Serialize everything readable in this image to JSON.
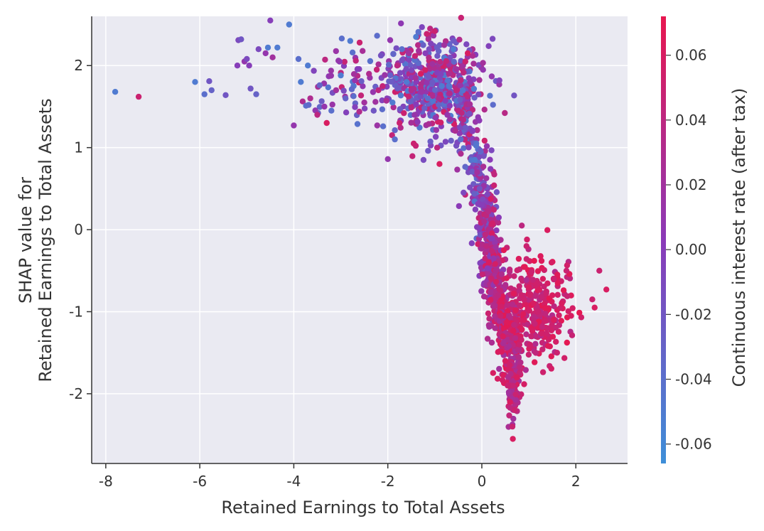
{
  "chart_data": {
    "type": "scatter",
    "title": "",
    "xlabel": "Retained Earnings to Total Assets",
    "ylabel_lines": [
      "SHAP value for",
      "Retained Earnings to Total Assets"
    ],
    "xlim": [
      -8.3,
      3.1
    ],
    "ylim": [
      -2.85,
      2.6
    ],
    "x_ticks": [
      -8,
      -6,
      -4,
      -2,
      0,
      2
    ],
    "x_tick_labels": [
      "-8",
      "-6",
      "-4",
      "-2",
      "0",
      "2"
    ],
    "y_ticks": [
      -2,
      -1,
      0,
      1,
      2
    ],
    "y_tick_labels": [
      "-2",
      "-1",
      "0",
      "1",
      "2"
    ],
    "grid": true,
    "colorbar": {
      "label": "Continuous interest rate (after tax)",
      "range": [
        -0.066,
        0.072
      ],
      "ticks": [
        -0.06,
        -0.04,
        -0.02,
        0.0,
        0.02,
        0.04,
        0.06
      ],
      "tick_labels": [
        "-0.06",
        "-0.04",
        "-0.02",
        "0.00",
        "0.02",
        "0.04",
        "0.06"
      ],
      "colors": [
        "#3e8fd8",
        "#8a3ab8",
        "#e8174f"
      ]
    },
    "points": [
      [
        -7.8,
        1.68,
        -0.05
      ],
      [
        -7.3,
        1.62,
        0.05
      ],
      [
        -6.1,
        1.8,
        -0.05
      ],
      [
        -5.9,
        1.65,
        -0.04
      ],
      [
        -5.8,
        1.81,
        -0.02
      ],
      [
        -5.75,
        1.7,
        -0.03
      ],
      [
        -5.45,
        1.64,
        -0.02
      ],
      [
        -5.2,
        2.0,
        0.0
      ],
      [
        -5.18,
        2.31,
        -0.01
      ],
      [
        -5.12,
        2.32,
        -0.02
      ],
      [
        -5.05,
        2.05,
        0.01
      ],
      [
        -5.0,
        2.08,
        -0.01
      ],
      [
        -4.95,
        2.0,
        0.0
      ],
      [
        -4.92,
        1.72,
        -0.02
      ],
      [
        -4.8,
        1.65,
        -0.03
      ],
      [
        -4.75,
        2.2,
        -0.01
      ],
      [
        -4.6,
        2.15,
        0.01
      ],
      [
        -4.55,
        2.22,
        -0.05
      ],
      [
        -4.5,
        2.55,
        0.0
      ],
      [
        -4.45,
        2.1,
        0.02
      ],
      [
        -4.35,
        2.22,
        -0.05
      ],
      [
        -4.1,
        2.5,
        -0.05
      ],
      [
        -4.0,
        1.27,
        0.01
      ],
      [
        -3.9,
        2.08,
        -0.04
      ],
      [
        -3.85,
        1.8,
        -0.05
      ],
      [
        -3.7,
        2.0,
        -0.05
      ],
      [
        -3.65,
        1.6,
        0.03
      ],
      [
        -3.5,
        1.4,
        0.04
      ],
      [
        -3.45,
        1.76,
        -0.03
      ],
      [
        -3.35,
        1.5,
        0.01
      ],
      [
        -3.3,
        1.3,
        0.06
      ],
      [
        -3.2,
        1.45,
        -0.04
      ],
      [
        -3.1,
        1.7,
        0.02
      ],
      [
        -3.05,
        2.06,
        0.01
      ],
      [
        -3.0,
        1.88,
        -0.05
      ],
      [
        -2.98,
        2.33,
        -0.04
      ],
      [
        -2.9,
        1.6,
        -0.03
      ],
      [
        -2.8,
        2.3,
        -0.05
      ],
      [
        -2.75,
        2.16,
        -0.04
      ],
      [
        -2.7,
        1.82,
        0.01
      ],
      [
        -2.6,
        2.28,
        0.05
      ],
      [
        -2.5,
        1.55,
        0.02
      ],
      [
        -2.4,
        1.9,
        0.03
      ],
      [
        -2.3,
        1.45,
        -0.02
      ],
      [
        -2.2,
        1.7,
        0.04
      ],
      [
        -2.1,
        1.26,
        -0.04
      ],
      [
        -2.0,
        0.86,
        0.01
      ],
      [
        -1.95,
        2.31,
        0.01
      ],
      [
        -1.9,
        1.55,
        -0.05
      ],
      [
        -1.85,
        1.1,
        -0.04
      ],
      [
        -1.8,
        2.0,
        0.04
      ],
      [
        -1.75,
        1.3,
        0.05
      ],
      [
        -1.7,
        2.2,
        -0.04
      ],
      [
        -1.6,
        1.8,
        -0.05
      ],
      [
        -1.55,
        2.15,
        0.02
      ],
      [
        -1.5,
        1.7,
        0.03
      ],
      [
        -1.45,
        1.05,
        0.05
      ],
      [
        -1.4,
        2.35,
        -0.05
      ],
      [
        -1.35,
        2.41,
        -0.04
      ],
      [
        -1.3,
        1.9,
        0.06
      ],
      [
        -1.2,
        2.15,
        0.0
      ],
      [
        -1.15,
        1.6,
        -0.04
      ],
      [
        -1.1,
        2.45,
        0.04
      ],
      [
        -1.05,
        2.02,
        0.02
      ],
      [
        -1.0,
        2.42,
        0.05
      ],
      [
        -0.95,
        1.0,
        0.04
      ],
      [
        -0.9,
        0.8,
        0.06
      ],
      [
        -0.85,
        1.75,
        -0.05
      ],
      [
        -0.8,
        2.25,
        0.02
      ],
      [
        -0.7,
        1.9,
        0.03
      ],
      [
        -0.6,
        2.2,
        -0.05
      ],
      [
        -0.5,
        1.45,
        0.04
      ],
      [
        -0.45,
        1.1,
        -0.04
      ],
      [
        -0.4,
        2.0,
        0.02
      ],
      [
        -0.35,
        2.05,
        0.05
      ],
      [
        -0.3,
        2.15,
        0.06
      ],
      [
        -0.25,
        1.8,
        0.01
      ],
      [
        -0.2,
        1.2,
        0.0
      ],
      [
        -0.15,
        0.85,
        -0.05
      ],
      [
        -0.1,
        0.7,
        0.02
      ],
      [
        -0.05,
        0.5,
        -0.02
      ],
      [
        0.0,
        0.3,
        0.0
      ],
      [
        0.05,
        0.1,
        0.03
      ],
      [
        0.1,
        -0.2,
        0.04
      ],
      [
        0.15,
        -0.4,
        0.06
      ],
      [
        0.2,
        -0.6,
        0.05
      ],
      [
        0.25,
        -0.35,
        0.01
      ],
      [
        0.3,
        -0.5,
        0.03
      ],
      [
        0.35,
        -0.8,
        0.04
      ],
      [
        0.4,
        -1.05,
        0.05
      ],
      [
        0.45,
        -1.3,
        0.06
      ],
      [
        0.5,
        -1.6,
        0.06
      ],
      [
        0.55,
        -1.9,
        0.05
      ],
      [
        0.6,
        -2.1,
        0.06
      ],
      [
        0.65,
        -2.4,
        0.05
      ],
      [
        0.66,
        -2.55,
        0.06
      ],
      [
        0.7,
        -2.2,
        0.05
      ],
      [
        0.75,
        -1.8,
        0.06
      ],
      [
        0.8,
        -1.4,
        0.05
      ],
      [
        0.85,
        0.05,
        0.04
      ],
      [
        0.9,
        -1.1,
        0.06
      ],
      [
        0.95,
        -0.2,
        0.05
      ],
      [
        1.0,
        -0.7,
        0.06
      ],
      [
        1.05,
        -1.3,
        0.05
      ],
      [
        1.1,
        -0.9,
        0.06
      ],
      [
        1.2,
        -1.0,
        0.05
      ],
      [
        1.3,
        -0.6,
        0.06
      ],
      [
        1.4,
        -1.2,
        0.05
      ],
      [
        1.5,
        -0.8,
        0.06
      ],
      [
        1.6,
        -1.5,
        0.05
      ],
      [
        1.7,
        -0.9,
        0.06
      ],
      [
        1.8,
        -0.5,
        0.05
      ],
      [
        1.9,
        -1.05,
        0.06
      ],
      [
        2.35,
        -0.85,
        0.05
      ],
      [
        2.4,
        -0.95,
        0.06
      ],
      [
        2.5,
        -0.5,
        0.05
      ],
      [
        2.65,
        -0.73,
        0.06
      ]
    ],
    "clusters": [
      {
        "cx": -0.95,
        "cy": 1.75,
        "sx": 0.5,
        "sy": 0.3,
        "n": 380,
        "c": [
          -0.05,
          0.06
        ]
      },
      {
        "cx": -1.6,
        "cy": 1.8,
        "sx": 0.55,
        "sy": 0.28,
        "n": 110,
        "c": [
          -0.05,
          0.05
        ]
      },
      {
        "cx": -2.8,
        "cy": 1.75,
        "sx": 0.55,
        "sy": 0.25,
        "n": 55,
        "c": [
          -0.05,
          0.05
        ]
      },
      {
        "cx": -0.35,
        "cy": 1.3,
        "sx": 0.12,
        "sy": 0.3,
        "n": 80,
        "c": [
          -0.05,
          0.05
        ]
      },
      {
        "cx": -0.1,
        "cy": 0.7,
        "sx": 0.08,
        "sy": 0.25,
        "n": 70,
        "c": [
          -0.05,
          0.03
        ]
      },
      {
        "cx": 0.1,
        "cy": 0.1,
        "sx": 0.1,
        "sy": 0.35,
        "n": 150,
        "c": [
          -0.02,
          0.05
        ]
      },
      {
        "cx": 0.25,
        "cy": -0.45,
        "sx": 0.1,
        "sy": 0.3,
        "n": 140,
        "c": [
          0.0,
          0.06
        ]
      },
      {
        "cx": 0.4,
        "cy": -0.9,
        "sx": 0.1,
        "sy": 0.2,
        "n": 100,
        "c": [
          0.02,
          0.06
        ]
      },
      {
        "cx": 0.6,
        "cy": -1.4,
        "sx": 0.12,
        "sy": 0.3,
        "n": 170,
        "c": [
          0.02,
          0.07
        ]
      },
      {
        "cx": 0.68,
        "cy": -1.9,
        "sx": 0.07,
        "sy": 0.25,
        "n": 80,
        "c": [
          0.02,
          0.06
        ]
      },
      {
        "cx": 1.1,
        "cy": -1.0,
        "sx": 0.3,
        "sy": 0.35,
        "n": 220,
        "c": [
          0.03,
          0.07
        ]
      },
      {
        "cx": 1.5,
        "cy": -0.9,
        "sx": 0.25,
        "sy": 0.3,
        "n": 60,
        "c": [
          0.04,
          0.07
        ]
      }
    ]
  }
}
